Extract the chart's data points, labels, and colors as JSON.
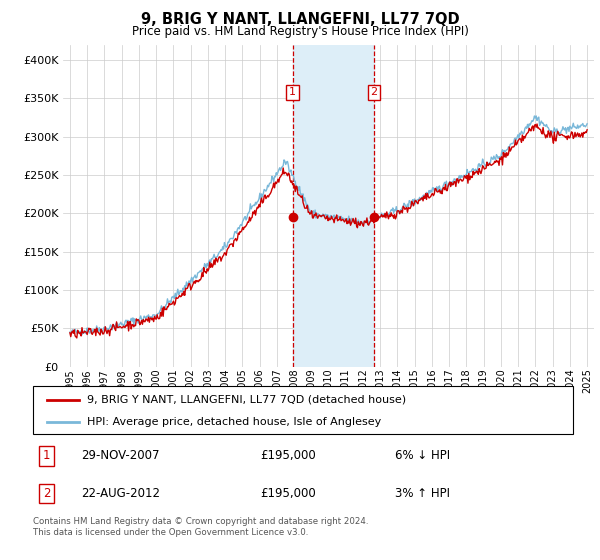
{
  "title": "9, BRIG Y NANT, LLANGEFNI, LL77 7QD",
  "subtitle": "Price paid vs. HM Land Registry's House Price Index (HPI)",
  "legend_line1": "9, BRIG Y NANT, LLANGEFNI, LL77 7QD (detached house)",
  "legend_line2": "HPI: Average price, detached house, Isle of Anglesey",
  "footer": "Contains HM Land Registry data © Crown copyright and database right 2024.\nThis data is licensed under the Open Government Licence v3.0.",
  "transaction1_date": "29-NOV-2007",
  "transaction1_price": "£195,000",
  "transaction1_hpi": "6% ↓ HPI",
  "transaction2_date": "22-AUG-2012",
  "transaction2_price": "£195,000",
  "transaction2_hpi": "3% ↑ HPI",
  "sale1_x": 2007.917,
  "sale1_y": 195000,
  "sale2_x": 2012.642,
  "sale2_y": 195000,
  "hpi_color": "#7ab8d9",
  "price_color": "#cc0000",
  "shade_color": "#ddeef8",
  "ylim": [
    0,
    420000
  ],
  "xlim_start": 1994.6,
  "xlim_end": 2025.4,
  "yticks": [
    0,
    50000,
    100000,
    150000,
    200000,
    250000,
    300000,
    350000,
    400000
  ],
  "xticks": [
    1995,
    1996,
    1997,
    1998,
    1999,
    2000,
    2001,
    2002,
    2003,
    2004,
    2005,
    2006,
    2007,
    2008,
    2009,
    2010,
    2011,
    2012,
    2013,
    2014,
    2015,
    2016,
    2017,
    2018,
    2019,
    2020,
    2021,
    2022,
    2023,
    2024,
    2025
  ]
}
